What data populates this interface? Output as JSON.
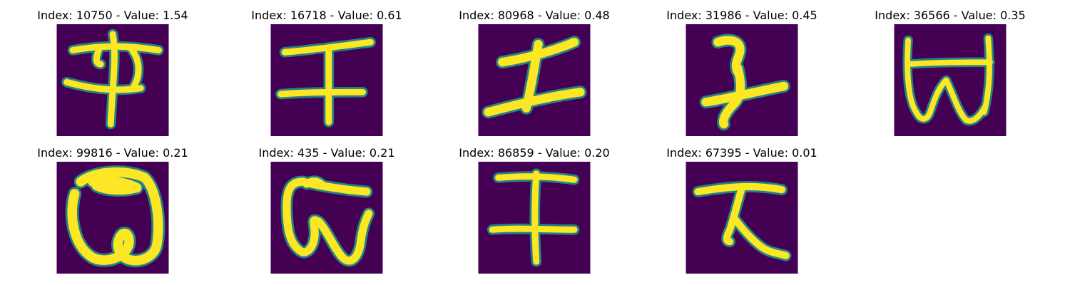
{
  "panels": [
    {
      "title": "Index: 10750 - Value: 1.54",
      "glyph": "glyph-a"
    },
    {
      "title": "Index: 16718 - Value: 0.61",
      "glyph": "glyph-b"
    },
    {
      "title": "Index: 80968 - Value: 0.48",
      "glyph": "glyph-c"
    },
    {
      "title": "Index: 31986 - Value: 0.45",
      "glyph": "glyph-d"
    },
    {
      "title": "Index: 36566 - Value: 0.35",
      "glyph": "glyph-e"
    },
    {
      "title": "Index: 99816 - Value: 0.21",
      "glyph": "glyph-f"
    },
    {
      "title": "Index: 435 - Value: 0.21",
      "glyph": "glyph-g"
    },
    {
      "title": "Index: 86859 - Value: 0.20",
      "glyph": "glyph-h"
    },
    {
      "title": "Index: 67395 - Value: 0.01",
      "glyph": "glyph-i"
    }
  ],
  "colors": {
    "background": "#440154",
    "stroke": "#fde725",
    "edge": "#21918c"
  }
}
